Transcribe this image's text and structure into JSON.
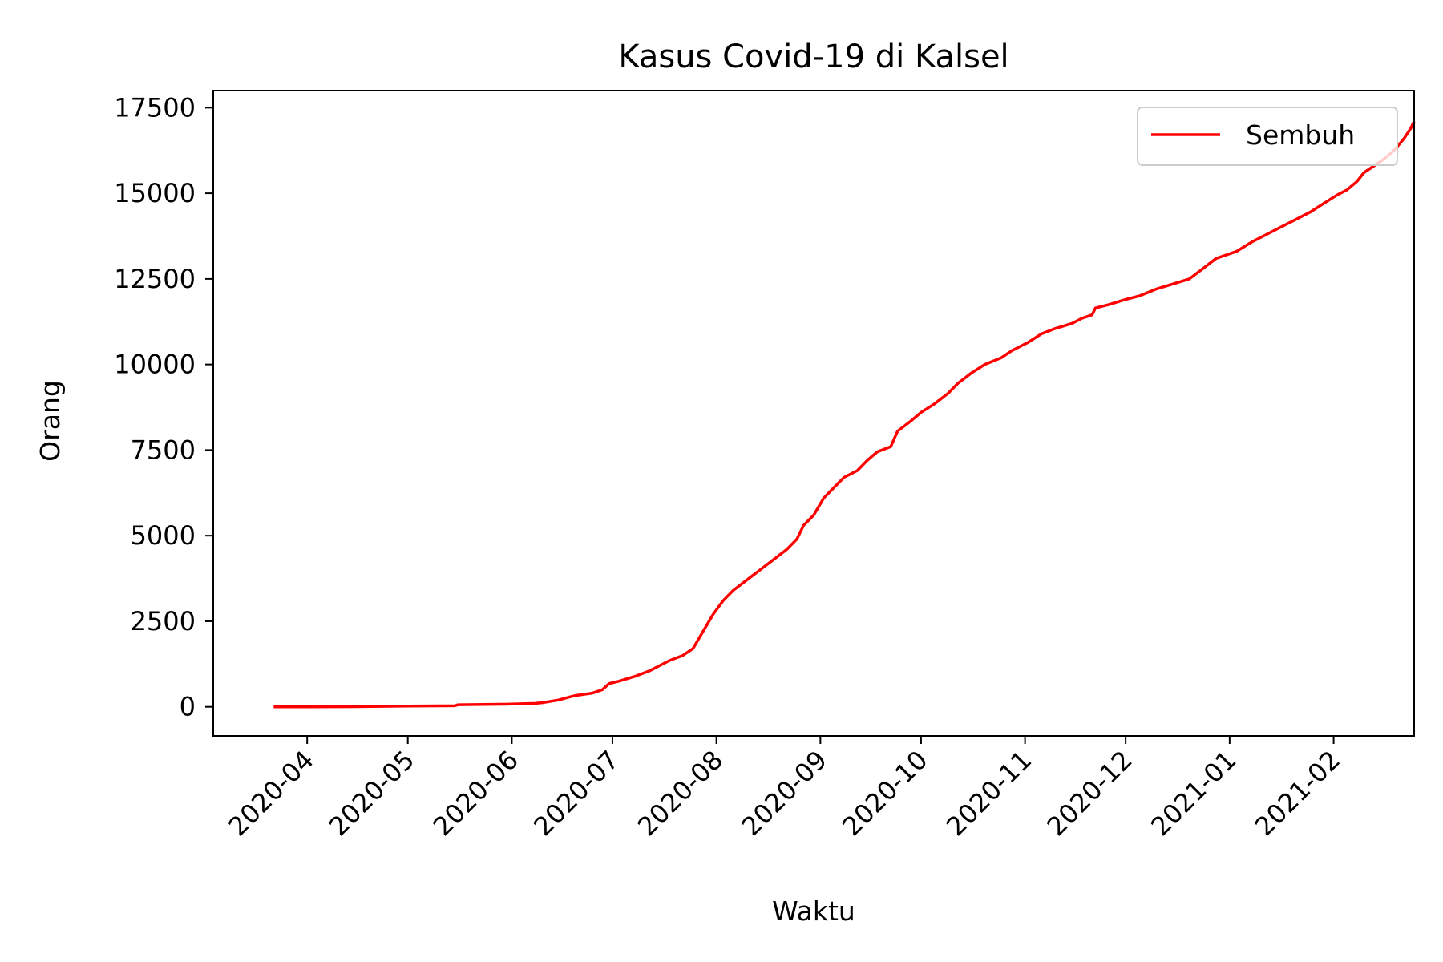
{
  "chart_data": {
    "type": "line",
    "title": "Kasus Covid-19 di Kalsel",
    "xlabel": "Waktu",
    "ylabel": "Orang",
    "xlim": [
      "2020-03-04",
      "2021-02-25"
    ],
    "ylim": [
      -850,
      18000
    ],
    "x_ticks": [
      "2020-04",
      "2020-05",
      "2020-06",
      "2020-07",
      "2020-08",
      "2020-09",
      "2020-10",
      "2020-11",
      "2020-12",
      "2021-01",
      "2021-02"
    ],
    "y_ticks": [
      0,
      2500,
      5000,
      7500,
      10000,
      12500,
      15000,
      17500
    ],
    "legend": {
      "position": "upper-right"
    },
    "grid": false,
    "series": [
      {
        "name": "Sembuh",
        "color": "#ff0000",
        "points": [
          [
            "2020-03-22",
            0
          ],
          [
            "2020-04-01",
            0
          ],
          [
            "2020-04-15",
            5
          ],
          [
            "2020-05-01",
            20
          ],
          [
            "2020-05-15",
            30
          ],
          [
            "2020-05-16",
            60
          ],
          [
            "2020-06-01",
            80
          ],
          [
            "2020-06-08",
            100
          ],
          [
            "2020-06-10",
            120
          ],
          [
            "2020-06-15",
            200
          ],
          [
            "2020-06-18",
            280
          ],
          [
            "2020-06-20",
            330
          ],
          [
            "2020-06-25",
            400
          ],
          [
            "2020-06-28",
            500
          ],
          [
            "2020-06-30",
            680
          ],
          [
            "2020-07-03",
            750
          ],
          [
            "2020-07-08",
            900
          ],
          [
            "2020-07-12",
            1050
          ],
          [
            "2020-07-15",
            1200
          ],
          [
            "2020-07-18",
            1350
          ],
          [
            "2020-07-22",
            1500
          ],
          [
            "2020-07-25",
            1700
          ],
          [
            "2020-07-28",
            2200
          ],
          [
            "2020-07-31",
            2700
          ],
          [
            "2020-08-03",
            3100
          ],
          [
            "2020-08-06",
            3400
          ],
          [
            "2020-08-10",
            3700
          ],
          [
            "2020-08-14",
            4000
          ],
          [
            "2020-08-18",
            4300
          ],
          [
            "2020-08-22",
            4600
          ],
          [
            "2020-08-25",
            4900
          ],
          [
            "2020-08-27",
            5300
          ],
          [
            "2020-08-30",
            5600
          ],
          [
            "2020-09-02",
            6100
          ],
          [
            "2020-09-05",
            6400
          ],
          [
            "2020-09-08",
            6700
          ],
          [
            "2020-09-12",
            6900
          ],
          [
            "2020-09-15",
            7200
          ],
          [
            "2020-09-18",
            7450
          ],
          [
            "2020-09-22",
            7600
          ],
          [
            "2020-09-24",
            8050
          ],
          [
            "2020-09-28",
            8350
          ],
          [
            "2020-10-01",
            8600
          ],
          [
            "2020-10-05",
            8850
          ],
          [
            "2020-10-09",
            9150
          ],
          [
            "2020-10-12",
            9450
          ],
          [
            "2020-10-16",
            9750
          ],
          [
            "2020-10-20",
            10000
          ],
          [
            "2020-10-25",
            10200
          ],
          [
            "2020-10-28",
            10400
          ],
          [
            "2020-11-02",
            10650
          ],
          [
            "2020-11-06",
            10900
          ],
          [
            "2020-11-10",
            11050
          ],
          [
            "2020-11-15",
            11200
          ],
          [
            "2020-11-18",
            11350
          ],
          [
            "2020-11-21",
            11450
          ],
          [
            "2020-11-22",
            11650
          ],
          [
            "2020-11-26",
            11750
          ],
          [
            "2020-12-01",
            11900
          ],
          [
            "2020-12-05",
            12000
          ],
          [
            "2020-12-10",
            12200
          ],
          [
            "2020-12-15",
            12350
          ],
          [
            "2020-12-20",
            12500
          ],
          [
            "2020-12-24",
            12800
          ],
          [
            "2020-12-28",
            13100
          ],
          [
            "2021-01-03",
            13300
          ],
          [
            "2021-01-08",
            13600
          ],
          [
            "2021-01-12",
            13800
          ],
          [
            "2021-01-16",
            14000
          ],
          [
            "2021-01-20",
            14200
          ],
          [
            "2021-01-25",
            14450
          ],
          [
            "2021-01-29",
            14700
          ],
          [
            "2021-02-02",
            14950
          ],
          [
            "2021-02-05",
            15100
          ],
          [
            "2021-02-08",
            15350
          ],
          [
            "2021-02-10",
            15600
          ],
          [
            "2021-02-13",
            15800
          ],
          [
            "2021-02-16",
            16000
          ],
          [
            "2021-02-19",
            16250
          ],
          [
            "2021-02-22",
            16600
          ],
          [
            "2021-02-24",
            16900
          ],
          [
            "2021-02-25",
            17100
          ]
        ]
      }
    ]
  }
}
